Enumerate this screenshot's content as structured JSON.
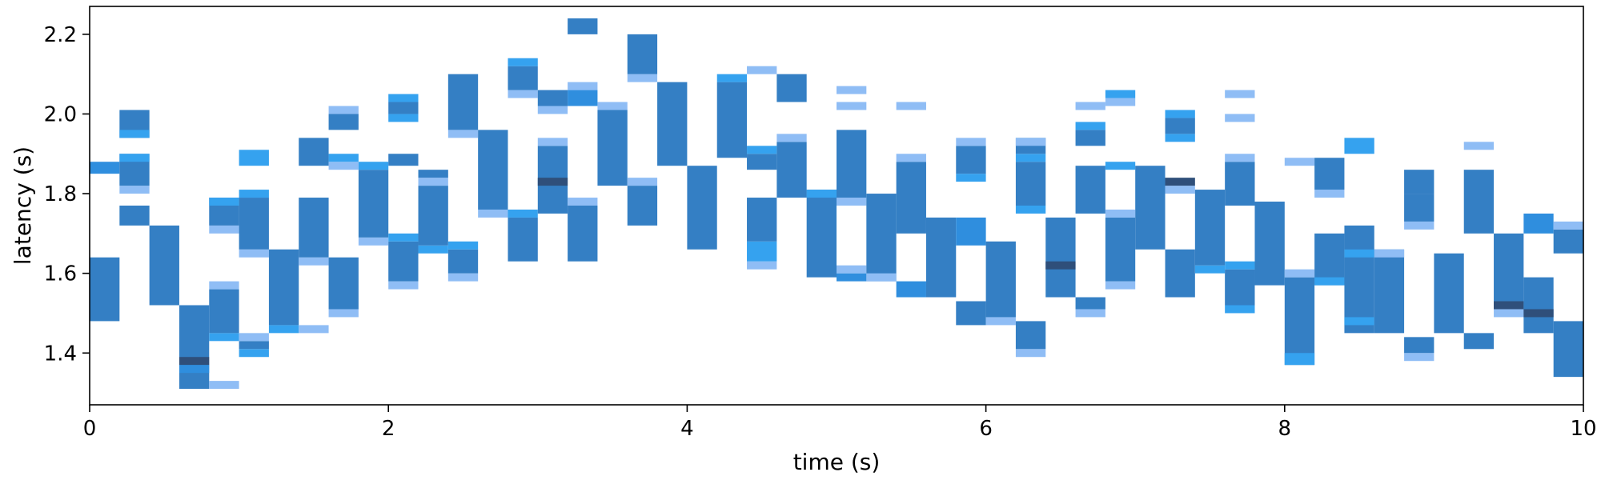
{
  "chart_data": {
    "type": "heatmap",
    "title": "",
    "xlabel": "time (s)",
    "ylabel": "latency (s)",
    "xlim": [
      0,
      10
    ],
    "ylim": [
      1.27,
      2.27
    ],
    "x_ticks": [
      0,
      2,
      4,
      6,
      8,
      10
    ],
    "x_tick_labels": [
      "0",
      "2",
      "4",
      "6",
      "8",
      "10"
    ],
    "y_ticks": [
      1.4,
      1.6,
      1.8,
      2.0,
      2.2
    ],
    "y_tick_labels": [
      "1.4",
      "1.6",
      "1.8",
      "2.0",
      "2.2"
    ],
    "grid": false,
    "legend": "none",
    "colormap": "Blues-like sequential (light #8fbdf5 to dark #2f4f7a)",
    "color_levels": [
      "#8fbdf5",
      "#35a2ef",
      "#2f8ede",
      "#347fc4",
      "#3470a9",
      "#2f4f7a"
    ],
    "bin_width_x": 0.2,
    "bin_height_y": 0.02,
    "columns": [
      {
        "x": 0.0,
        "cells": [
          [
            1.48,
            1.64,
            3
          ],
          [
            1.85,
            1.88,
            2
          ]
        ]
      },
      {
        "x": 0.2,
        "cells": [
          [
            1.72,
            1.77,
            3
          ],
          [
            1.8,
            1.82,
            0
          ],
          [
            1.82,
            1.9,
            3
          ],
          [
            1.88,
            1.9,
            1
          ],
          [
            1.94,
            2.01,
            3
          ],
          [
            1.94,
            1.96,
            1
          ]
        ]
      },
      {
        "x": 0.4,
        "cells": [
          [
            1.52,
            1.72,
            3
          ]
        ]
      },
      {
        "x": 0.6,
        "cells": [
          [
            1.31,
            1.52,
            3
          ],
          [
            1.37,
            1.39,
            5
          ],
          [
            1.35,
            1.37,
            2
          ]
        ]
      },
      {
        "x": 0.8,
        "cells": [
          [
            1.31,
            1.33,
            0
          ],
          [
            1.43,
            1.45,
            1
          ],
          [
            1.45,
            1.56,
            3
          ],
          [
            1.56,
            1.58,
            0
          ],
          [
            1.7,
            1.72,
            0
          ],
          [
            1.72,
            1.79,
            3
          ],
          [
            1.77,
            1.79,
            1
          ]
        ]
      },
      {
        "x": 1.0,
        "cells": [
          [
            1.39,
            1.41,
            1
          ],
          [
            1.41,
            1.43,
            3
          ],
          [
            1.43,
            1.45,
            0
          ],
          [
            1.64,
            1.66,
            0
          ],
          [
            1.66,
            1.79,
            3
          ],
          [
            1.79,
            1.81,
            1
          ],
          [
            1.87,
            1.91,
            1
          ]
        ]
      },
      {
        "x": 1.2,
        "cells": [
          [
            1.45,
            1.47,
            1
          ],
          [
            1.47,
            1.66,
            3
          ]
        ]
      },
      {
        "x": 1.4,
        "cells": [
          [
            1.45,
            1.47,
            0
          ],
          [
            1.62,
            1.64,
            0
          ],
          [
            1.64,
            1.79,
            3
          ],
          [
            1.87,
            1.94,
            3
          ]
        ]
      },
      {
        "x": 1.6,
        "cells": [
          [
            1.49,
            1.51,
            0
          ],
          [
            1.51,
            1.64,
            3
          ],
          [
            1.86,
            1.88,
            0
          ],
          [
            1.88,
            1.9,
            1
          ],
          [
            1.96,
            2.0,
            3
          ],
          [
            2.0,
            2.02,
            0
          ]
        ]
      },
      {
        "x": 1.8,
        "cells": [
          [
            1.67,
            1.69,
            0
          ],
          [
            1.69,
            1.86,
            3
          ],
          [
            1.86,
            1.88,
            1
          ]
        ]
      },
      {
        "x": 2.0,
        "cells": [
          [
            1.56,
            1.58,
            0
          ],
          [
            1.58,
            1.68,
            3
          ],
          [
            1.68,
            1.7,
            1
          ],
          [
            1.87,
            1.9,
            3
          ],
          [
            1.98,
            2.0,
            1
          ],
          [
            2.0,
            2.03,
            3
          ],
          [
            2.03,
            2.05,
            1
          ]
        ]
      },
      {
        "x": 2.2,
        "cells": [
          [
            1.65,
            1.67,
            1
          ],
          [
            1.67,
            1.82,
            3
          ],
          [
            1.82,
            1.84,
            0
          ],
          [
            1.84,
            1.86,
            3
          ]
        ]
      },
      {
        "x": 2.4,
        "cells": [
          [
            1.58,
            1.6,
            0
          ],
          [
            1.6,
            1.66,
            3
          ],
          [
            1.66,
            1.68,
            1
          ],
          [
            1.94,
            1.96,
            0
          ],
          [
            1.96,
            2.1,
            3
          ]
        ]
      },
      {
        "x": 2.6,
        "cells": [
          [
            1.74,
            1.76,
            0
          ],
          [
            1.76,
            1.96,
            3
          ]
        ]
      },
      {
        "x": 2.8,
        "cells": [
          [
            1.63,
            1.74,
            3
          ],
          [
            1.74,
            1.76,
            1
          ],
          [
            2.04,
            2.06,
            0
          ],
          [
            2.06,
            2.12,
            3
          ],
          [
            2.12,
            2.14,
            1
          ]
        ]
      },
      {
        "x": 3.0,
        "cells": [
          [
            1.75,
            1.92,
            3
          ],
          [
            1.82,
            1.84,
            5
          ],
          [
            1.92,
            1.94,
            0
          ],
          [
            2.0,
            2.02,
            0
          ],
          [
            2.02,
            2.06,
            3
          ]
        ]
      },
      {
        "x": 3.2,
        "cells": [
          [
            1.63,
            1.77,
            3
          ],
          [
            1.77,
            1.79,
            0
          ],
          [
            2.02,
            2.06,
            2
          ],
          [
            2.06,
            2.08,
            0
          ],
          [
            2.2,
            2.24,
            3
          ]
        ]
      },
      {
        "x": 3.4,
        "cells": [
          [
            1.82,
            2.01,
            3
          ],
          [
            2.01,
            2.03,
            0
          ]
        ]
      },
      {
        "x": 3.6,
        "cells": [
          [
            1.72,
            1.82,
            3
          ],
          [
            1.82,
            1.84,
            0
          ],
          [
            2.08,
            2.1,
            0
          ],
          [
            2.1,
            2.2,
            3
          ]
        ]
      },
      {
        "x": 3.8,
        "cells": [
          [
            1.87,
            2.08,
            3
          ]
        ]
      },
      {
        "x": 4.0,
        "cells": [
          [
            1.66,
            1.87,
            3
          ]
        ]
      },
      {
        "x": 4.2,
        "cells": [
          [
            1.89,
            2.08,
            3
          ],
          [
            2.08,
            2.1,
            1
          ]
        ]
      },
      {
        "x": 4.4,
        "cells": [
          [
            1.61,
            1.63,
            0
          ],
          [
            1.63,
            1.68,
            1
          ],
          [
            1.68,
            1.79,
            3
          ],
          [
            1.86,
            1.9,
            3
          ],
          [
            1.9,
            1.92,
            1
          ],
          [
            2.1,
            2.12,
            0
          ]
        ]
      },
      {
        "x": 4.6,
        "cells": [
          [
            1.79,
            1.93,
            3
          ],
          [
            1.93,
            1.95,
            0
          ],
          [
            2.03,
            2.1,
            3
          ]
        ]
      },
      {
        "x": 4.8,
        "cells": [
          [
            1.59,
            1.81,
            3
          ],
          [
            1.79,
            1.81,
            1
          ]
        ]
      },
      {
        "x": 5.0,
        "cells": [
          [
            1.58,
            1.6,
            2
          ],
          [
            1.6,
            1.62,
            0
          ],
          [
            1.77,
            1.79,
            0
          ],
          [
            1.79,
            1.96,
            3
          ],
          [
            2.01,
            2.03,
            0
          ],
          [
            2.05,
            2.07,
            0
          ]
        ]
      },
      {
        "x": 5.2,
        "cells": [
          [
            1.58,
            1.8,
            3
          ],
          [
            1.58,
            1.6,
            0
          ]
        ]
      },
      {
        "x": 5.4,
        "cells": [
          [
            1.54,
            1.58,
            2
          ],
          [
            1.7,
            1.88,
            3
          ],
          [
            1.88,
            1.9,
            0
          ],
          [
            2.01,
            2.03,
            0
          ]
        ]
      },
      {
        "x": 5.6,
        "cells": [
          [
            1.54,
            1.74,
            3
          ]
        ]
      },
      {
        "x": 5.8,
        "cells": [
          [
            1.47,
            1.53,
            3
          ],
          [
            1.67,
            1.74,
            2
          ],
          [
            1.83,
            1.85,
            1
          ],
          [
            1.85,
            1.92,
            3
          ],
          [
            1.92,
            1.94,
            0
          ]
        ]
      },
      {
        "x": 6.0,
        "cells": [
          [
            1.47,
            1.49,
            0
          ],
          [
            1.49,
            1.68,
            3
          ]
        ]
      },
      {
        "x": 6.2,
        "cells": [
          [
            1.39,
            1.41,
            0
          ],
          [
            1.41,
            1.48,
            3
          ],
          [
            1.75,
            1.77,
            1
          ],
          [
            1.77,
            1.88,
            3
          ],
          [
            1.88,
            1.9,
            1
          ],
          [
            1.9,
            1.94,
            3
          ],
          [
            1.92,
            1.94,
            0
          ]
        ]
      },
      {
        "x": 6.4,
        "cells": [
          [
            1.54,
            1.74,
            3
          ],
          [
            1.61,
            1.63,
            5
          ]
        ]
      },
      {
        "x": 6.6,
        "cells": [
          [
            1.49,
            1.51,
            0
          ],
          [
            1.51,
            1.54,
            3
          ],
          [
            1.75,
            1.87,
            3
          ],
          [
            1.92,
            1.96,
            3
          ],
          [
            1.96,
            1.98,
            1
          ],
          [
            2.01,
            2.03,
            0
          ]
        ]
      },
      {
        "x": 6.8,
        "cells": [
          [
            1.56,
            1.58,
            0
          ],
          [
            1.58,
            1.74,
            3
          ],
          [
            1.74,
            1.76,
            0
          ],
          [
            1.86,
            1.88,
            1
          ],
          [
            2.02,
            2.04,
            0
          ],
          [
            2.04,
            2.06,
            1
          ]
        ]
      },
      {
        "x": 7.0,
        "cells": [
          [
            1.66,
            1.87,
            3
          ]
        ]
      },
      {
        "x": 7.2,
        "cells": [
          [
            1.54,
            1.66,
            3
          ],
          [
            1.8,
            1.82,
            0
          ],
          [
            1.82,
            1.84,
            5
          ],
          [
            1.93,
            1.95,
            1
          ],
          [
            1.95,
            1.99,
            3
          ],
          [
            1.99,
            2.01,
            1
          ]
        ]
      },
      {
        "x": 7.4,
        "cells": [
          [
            1.6,
            1.62,
            1
          ],
          [
            1.62,
            1.81,
            3
          ]
        ]
      },
      {
        "x": 7.6,
        "cells": [
          [
            1.5,
            1.52,
            1
          ],
          [
            1.52,
            1.61,
            3
          ],
          [
            1.61,
            1.63,
            1
          ],
          [
            1.77,
            1.88,
            3
          ],
          [
            1.88,
            1.9,
            0
          ],
          [
            1.98,
            2.0,
            0
          ],
          [
            2.04,
            2.06,
            0
          ]
        ]
      },
      {
        "x": 7.8,
        "cells": [
          [
            1.57,
            1.78,
            3
          ]
        ]
      },
      {
        "x": 8.0,
        "cells": [
          [
            1.37,
            1.59,
            3
          ],
          [
            1.37,
            1.4,
            1
          ],
          [
            1.59,
            1.61,
            0
          ],
          [
            1.87,
            1.89,
            0
          ]
        ]
      },
      {
        "x": 8.2,
        "cells": [
          [
            1.57,
            1.7,
            3
          ],
          [
            1.57,
            1.59,
            1
          ],
          [
            1.79,
            1.81,
            0
          ],
          [
            1.81,
            1.89,
            3
          ]
        ]
      },
      {
        "x": 8.4,
        "cells": [
          [
            1.45,
            1.72,
            3
          ],
          [
            1.47,
            1.49,
            1
          ],
          [
            1.64,
            1.66,
            1
          ],
          [
            1.9,
            1.94,
            1
          ]
        ]
      },
      {
        "x": 8.6,
        "cells": [
          [
            1.45,
            1.66,
            3
          ],
          [
            1.64,
            1.66,
            0
          ]
        ]
      },
      {
        "x": 8.8,
        "cells": [
          [
            1.38,
            1.4,
            0
          ],
          [
            1.4,
            1.44,
            3
          ],
          [
            1.71,
            1.73,
            0
          ],
          [
            1.73,
            1.8,
            3
          ],
          [
            1.8,
            1.86,
            3
          ]
        ]
      },
      {
        "x": 9.0,
        "cells": [
          [
            1.45,
            1.65,
            3
          ]
        ]
      },
      {
        "x": 9.2,
        "cells": [
          [
            1.41,
            1.45,
            3
          ],
          [
            1.7,
            1.86,
            3
          ],
          [
            1.91,
            1.93,
            0
          ]
        ]
      },
      {
        "x": 9.4,
        "cells": [
          [
            1.49,
            1.51,
            0
          ],
          [
            1.51,
            1.7,
            3
          ],
          [
            1.51,
            1.53,
            5
          ]
        ]
      },
      {
        "x": 9.6,
        "cells": [
          [
            1.45,
            1.59,
            3
          ],
          [
            1.49,
            1.51,
            5
          ],
          [
            1.7,
            1.75,
            2
          ]
        ]
      },
      {
        "x": 9.8,
        "cells": [
          [
            1.34,
            1.48,
            3
          ],
          [
            1.65,
            1.71,
            3
          ],
          [
            1.71,
            1.73,
            0
          ]
        ]
      }
    ]
  }
}
